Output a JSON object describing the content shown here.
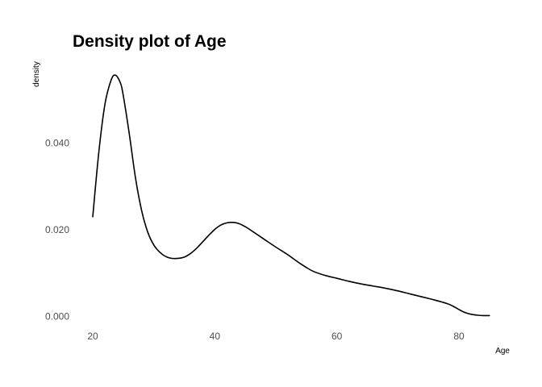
{
  "chart_data": {
    "type": "line",
    "title": "Density plot of Age",
    "xlabel": "Age",
    "ylabel": "density",
    "xlim": [
      18,
      86
    ],
    "ylim": [
      0,
      0.058
    ],
    "x_ticks": [
      20,
      40,
      60,
      80
    ],
    "x_tick_labels": [
      "20",
      "40",
      "60",
      "80"
    ],
    "y_ticks": [
      0,
      0.02,
      0.04
    ],
    "y_tick_labels": [
      "0.000",
      "0.020",
      "0.040"
    ],
    "grid": false,
    "series": [
      {
        "color": "#000000",
        "x": [
          20,
          21,
          22,
          23,
          23.7,
          24.5,
          25,
          26,
          27,
          28,
          29,
          30,
          31,
          32,
          33,
          34,
          35,
          36,
          37,
          38,
          39,
          40,
          41,
          42,
          43,
          44,
          45,
          46,
          48,
          50,
          52,
          54,
          56,
          58,
          60,
          62,
          64,
          66,
          68,
          70,
          72,
          74,
          76,
          78,
          79,
          80,
          81,
          82,
          83,
          84,
          85
        ],
        "y": [
          0.023,
          0.038,
          0.049,
          0.0545,
          0.0557,
          0.054,
          0.051,
          0.042,
          0.032,
          0.0245,
          0.0195,
          0.0165,
          0.0148,
          0.0138,
          0.0134,
          0.0134,
          0.0137,
          0.0145,
          0.0157,
          0.0172,
          0.0187,
          0.0201,
          0.0211,
          0.0216,
          0.0217,
          0.0214,
          0.0207,
          0.0198,
          0.0179,
          0.016,
          0.0142,
          0.0122,
          0.0105,
          0.0095,
          0.0088,
          0.0081,
          0.0075,
          0.007,
          0.0065,
          0.0059,
          0.0052,
          0.0045,
          0.0038,
          0.003,
          0.0024,
          0.0016,
          0.0009,
          0.0005,
          0.0003,
          0.0002,
          0.0002
        ]
      }
    ]
  }
}
